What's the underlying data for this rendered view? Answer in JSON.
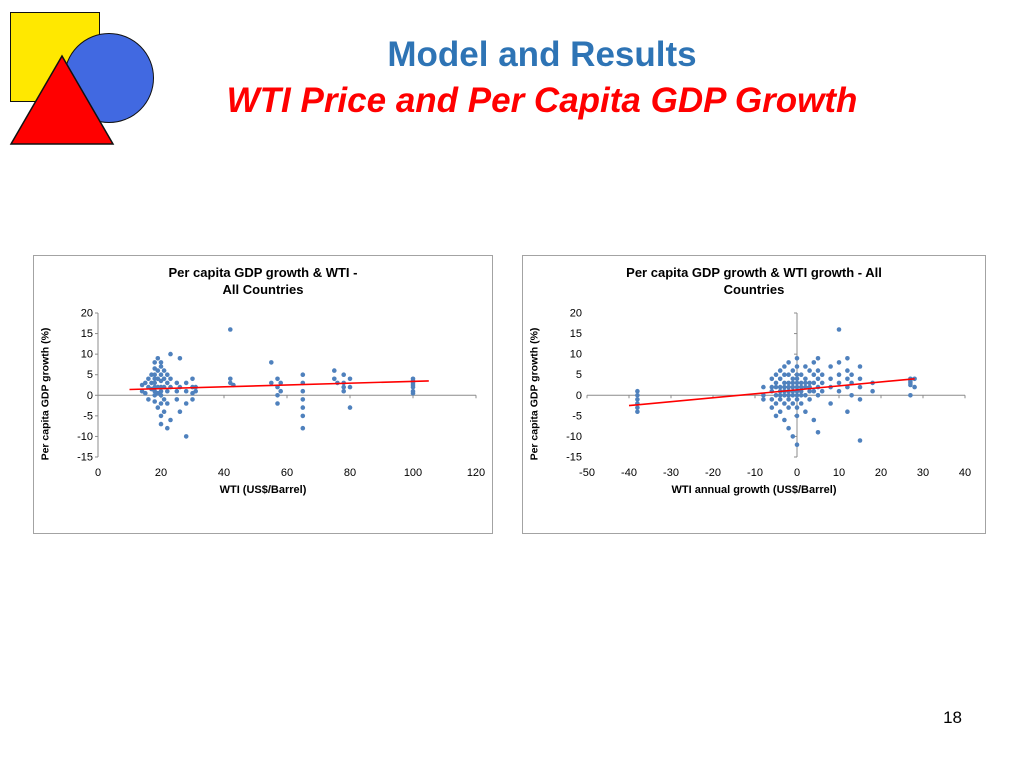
{
  "slide": {
    "title": "Model and Results",
    "subtitle": "WTI Price and Per Capita GDP Growth",
    "page_number": "18",
    "title_color": "#2E74B5",
    "subtitle_color": "#FF0000"
  },
  "logo": {
    "square_color": "#FFE800",
    "circle_color": "#4169E1",
    "triangle_color": "#FF0000",
    "outline_color": "#111111"
  },
  "chart_data": [
    {
      "type": "scatter",
      "title_line1": "Per capita GDP growth & WTI -",
      "title_line2": "All Countries",
      "xlabel": "WTI (US$/Barrel)",
      "ylabel": "Per capita GDP growth (%)",
      "xlim": [
        0,
        120
      ],
      "ylim": [
        -15,
        20
      ],
      "xticks": [
        0,
        20,
        40,
        60,
        80,
        100,
        120
      ],
      "yticks": [
        -15,
        -10,
        -5,
        0,
        5,
        10,
        15,
        20
      ],
      "axis_cross_x": 0,
      "axis_cross_y": 0,
      "grid": false,
      "legend": "none",
      "point_color": "#4F81BD",
      "trend_color": "#FF0000",
      "trendline": [
        [
          10,
          1.4
        ],
        [
          105,
          3.5
        ]
      ],
      "points": [
        [
          14,
          2.5
        ],
        [
          14,
          1
        ],
        [
          15,
          3
        ],
        [
          15,
          0.5
        ],
        [
          16,
          4
        ],
        [
          16,
          2
        ],
        [
          16,
          -1
        ],
        [
          17,
          5
        ],
        [
          17,
          3
        ],
        [
          17,
          1.5
        ],
        [
          18,
          8
        ],
        [
          18,
          6.5
        ],
        [
          18,
          5
        ],
        [
          18,
          4
        ],
        [
          18,
          3
        ],
        [
          18,
          2
        ],
        [
          18,
          1
        ],
        [
          18,
          0
        ],
        [
          18,
          -1.5
        ],
        [
          19,
          9
        ],
        [
          19,
          6
        ],
        [
          19,
          4
        ],
        [
          19,
          2
        ],
        [
          19,
          0.5
        ],
        [
          19,
          -3
        ],
        [
          20,
          8
        ],
        [
          20,
          7
        ],
        [
          20,
          5
        ],
        [
          20,
          3.5
        ],
        [
          20,
          2
        ],
        [
          20,
          1
        ],
        [
          20,
          0
        ],
        [
          20,
          -2
        ],
        [
          20,
          -5
        ],
        [
          20,
          -7
        ],
        [
          21,
          6
        ],
        [
          21,
          4
        ],
        [
          21,
          2
        ],
        [
          21,
          -1
        ],
        [
          21,
          -4
        ],
        [
          22,
          5
        ],
        [
          22,
          3
        ],
        [
          22,
          1
        ],
        [
          22,
          -2
        ],
        [
          22,
          -8
        ],
        [
          23,
          10
        ],
        [
          23,
          4
        ],
        [
          23,
          2
        ],
        [
          23,
          -6
        ],
        [
          25,
          3
        ],
        [
          25,
          1
        ],
        [
          25,
          -1
        ],
        [
          26,
          9
        ],
        [
          26,
          2
        ],
        [
          26,
          -4
        ],
        [
          28,
          3
        ],
        [
          28,
          1
        ],
        [
          28,
          -2
        ],
        [
          28,
          -10
        ],
        [
          30,
          4
        ],
        [
          30,
          2
        ],
        [
          30,
          0.5
        ],
        [
          30,
          -1
        ],
        [
          31,
          2
        ],
        [
          31,
          1
        ],
        [
          42,
          16
        ],
        [
          42,
          4
        ],
        [
          42,
          3
        ],
        [
          43,
          2.5
        ],
        [
          55,
          8
        ],
        [
          55,
          3
        ],
        [
          57,
          4
        ],
        [
          57,
          2
        ],
        [
          57,
          0
        ],
        [
          57,
          -2
        ],
        [
          58,
          3
        ],
        [
          58,
          1
        ],
        [
          65,
          5
        ],
        [
          65,
          3
        ],
        [
          65,
          1
        ],
        [
          65,
          -1
        ],
        [
          65,
          -3
        ],
        [
          65,
          -5
        ],
        [
          65,
          -8
        ],
        [
          75,
          6
        ],
        [
          75,
          4
        ],
        [
          76,
          3
        ],
        [
          78,
          5
        ],
        [
          78,
          3
        ],
        [
          78,
          2
        ],
        [
          78,
          1
        ],
        [
          80,
          4
        ],
        [
          80,
          2
        ],
        [
          80,
          -3
        ],
        [
          100,
          4
        ],
        [
          100,
          3.5
        ],
        [
          100,
          3
        ],
        [
          100,
          2.5
        ],
        [
          100,
          2
        ],
        [
          100,
          1
        ],
        [
          100,
          0.5
        ]
      ]
    },
    {
      "type": "scatter",
      "title_line1": "Per capita GDP growth & WTI growth - All",
      "title_line2": "Countries",
      "xlabel": "WTI annual growth (US$/Barrel)",
      "ylabel": "Per capita GDP growth (%)",
      "xlim": [
        -50,
        40
      ],
      "ylim": [
        -15,
        20
      ],
      "xticks": [
        -50,
        -40,
        -30,
        -20,
        -10,
        0,
        10,
        20,
        30,
        40
      ],
      "yticks": [
        -15,
        -10,
        -5,
        0,
        5,
        10,
        15,
        20
      ],
      "axis_cross_x": 0,
      "axis_cross_y": 0,
      "grid": false,
      "legend": "none",
      "point_color": "#4F81BD",
      "trend_color": "#FF0000",
      "trendline": [
        [
          -40,
          -2.5
        ],
        [
          28,
          4
        ]
      ],
      "points": [
        [
          -38,
          1
        ],
        [
          -38,
          0
        ],
        [
          -38,
          -1
        ],
        [
          -38,
          -2
        ],
        [
          -38,
          -3
        ],
        [
          -38,
          -4
        ],
        [
          -8,
          2
        ],
        [
          -8,
          0
        ],
        [
          -8,
          -1
        ],
        [
          -6,
          4
        ],
        [
          -6,
          2
        ],
        [
          -6,
          1
        ],
        [
          -6,
          -1
        ],
        [
          -6,
          -3
        ],
        [
          -5,
          5
        ],
        [
          -5,
          3
        ],
        [
          -5,
          2
        ],
        [
          -5,
          0
        ],
        [
          -5,
          -2
        ],
        [
          -5,
          -5
        ],
        [
          -4,
          6
        ],
        [
          -4,
          4
        ],
        [
          -4,
          2
        ],
        [
          -4,
          1
        ],
        [
          -4,
          0
        ],
        [
          -4,
          -1
        ],
        [
          -4,
          -4
        ],
        [
          -3,
          7
        ],
        [
          -3,
          5
        ],
        [
          -3,
          3
        ],
        [
          -3,
          2
        ],
        [
          -3,
          1
        ],
        [
          -3,
          0
        ],
        [
          -3,
          -2
        ],
        [
          -3,
          -6
        ],
        [
          -2,
          8
        ],
        [
          -2,
          5
        ],
        [
          -2,
          3
        ],
        [
          -2,
          2
        ],
        [
          -2,
          1
        ],
        [
          -2,
          0
        ],
        [
          -2,
          -1
        ],
        [
          -2,
          -3
        ],
        [
          -2,
          -8
        ],
        [
          -1,
          6
        ],
        [
          -1,
          4
        ],
        [
          -1,
          3
        ],
        [
          -1,
          2
        ],
        [
          -1,
          1
        ],
        [
          -1,
          0
        ],
        [
          -1,
          -2
        ],
        [
          -1,
          -10
        ],
        [
          0,
          9
        ],
        [
          0,
          7
        ],
        [
          0,
          5
        ],
        [
          0,
          4
        ],
        [
          0,
          3
        ],
        [
          0,
          2
        ],
        [
          0,
          1
        ],
        [
          0,
          0
        ],
        [
          0,
          -1
        ],
        [
          0,
          -3
        ],
        [
          0,
          -5
        ],
        [
          0,
          -12
        ],
        [
          1,
          5
        ],
        [
          1,
          3
        ],
        [
          1,
          2
        ],
        [
          1,
          1
        ],
        [
          1,
          0
        ],
        [
          1,
          -2
        ],
        [
          2,
          7
        ],
        [
          2,
          4
        ],
        [
          2,
          3
        ],
        [
          2,
          2
        ],
        [
          2,
          0
        ],
        [
          2,
          -4
        ],
        [
          3,
          6
        ],
        [
          3,
          3
        ],
        [
          3,
          2
        ],
        [
          3,
          1
        ],
        [
          3,
          -1
        ],
        [
          4,
          8
        ],
        [
          4,
          5
        ],
        [
          4,
          3
        ],
        [
          4,
          1
        ],
        [
          4,
          -6
        ],
        [
          5,
          9
        ],
        [
          5,
          6
        ],
        [
          5,
          4
        ],
        [
          5,
          2
        ],
        [
          5,
          0
        ],
        [
          5,
          -9
        ],
        [
          6,
          5
        ],
        [
          6,
          3
        ],
        [
          6,
          1
        ],
        [
          8,
          7
        ],
        [
          8,
          4
        ],
        [
          8,
          2
        ],
        [
          8,
          -2
        ],
        [
          10,
          16
        ],
        [
          10,
          8
        ],
        [
          10,
          5
        ],
        [
          10,
          3
        ],
        [
          10,
          1
        ],
        [
          12,
          9
        ],
        [
          12,
          6
        ],
        [
          12,
          4
        ],
        [
          12,
          2
        ],
        [
          12,
          -4
        ],
        [
          13,
          5
        ],
        [
          13,
          3
        ],
        [
          13,
          0
        ],
        [
          15,
          7
        ],
        [
          15,
          4
        ],
        [
          15,
          2
        ],
        [
          15,
          -1
        ],
        [
          15,
          -11
        ],
        [
          18,
          3
        ],
        [
          18,
          1
        ],
        [
          27,
          4
        ],
        [
          27,
          3.5
        ],
        [
          27,
          3
        ],
        [
          27,
          2.5
        ],
        [
          27,
          0
        ],
        [
          28,
          4
        ],
        [
          28,
          2
        ]
      ]
    }
  ]
}
